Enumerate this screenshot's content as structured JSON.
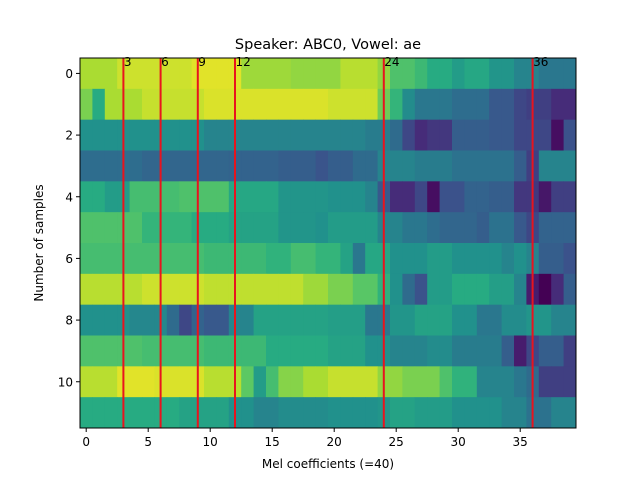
{
  "chart_data": {
    "type": "heatmap",
    "title": "Speaker: ABC0, Vowel: ae",
    "xlabel": "Mel coefficients (=40)",
    "ylabel": "Number of samples",
    "colormap": "viridis",
    "value_range": [
      0,
      1
    ],
    "n_cols": 40,
    "n_rows": 12,
    "xlim": [
      -0.5,
      39.5
    ],
    "ylim": [
      11.5,
      -0.5
    ],
    "x_ticks": [
      0,
      5,
      10,
      15,
      20,
      25,
      30,
      35
    ],
    "y_ticks": [
      0,
      2,
      4,
      6,
      8,
      10
    ],
    "grid": false,
    "row_levels": [
      [
        [
          0,
          0.88
        ],
        [
          3,
          0.93
        ],
        [
          9,
          0.96
        ],
        [
          13,
          0.86
        ],
        [
          17,
          0.84
        ],
        [
          21,
          0.9
        ],
        [
          24,
          0.84
        ],
        [
          25,
          0.72
        ],
        [
          27,
          0.68
        ],
        [
          28,
          0.62
        ],
        [
          30,
          0.55
        ],
        [
          31,
          0.6
        ],
        [
          33,
          0.52
        ],
        [
          35,
          0.45
        ],
        [
          37,
          0.4
        ]
      ],
      [
        [
          0,
          0.8
        ],
        [
          1,
          0.62
        ],
        [
          2,
          0.88
        ],
        [
          5,
          0.92
        ],
        [
          10,
          0.95
        ],
        [
          20,
          0.93
        ],
        [
          24,
          0.78
        ],
        [
          25,
          0.66
        ],
        [
          26,
          0.48
        ],
        [
          27,
          0.4
        ],
        [
          30,
          0.36
        ],
        [
          33,
          0.28
        ],
        [
          35,
          0.22
        ],
        [
          36,
          0.2
        ],
        [
          38,
          0.15
        ]
      ],
      [
        [
          0,
          0.5
        ],
        [
          10,
          0.45
        ],
        [
          23,
          0.42
        ],
        [
          25,
          0.35
        ],
        [
          26,
          0.22
        ],
        [
          27,
          0.15
        ],
        [
          28,
          0.18
        ],
        [
          30,
          0.3
        ],
        [
          33,
          0.28
        ],
        [
          35,
          0.22
        ],
        [
          38,
          0.05
        ],
        [
          39,
          0.25
        ]
      ],
      [
        [
          0,
          0.36
        ],
        [
          5,
          0.33
        ],
        [
          12,
          0.32
        ],
        [
          16,
          0.3
        ],
        [
          19,
          0.26
        ],
        [
          20,
          0.3
        ],
        [
          22,
          0.35
        ],
        [
          24,
          0.45
        ],
        [
          27,
          0.42
        ],
        [
          30,
          0.38
        ],
        [
          35,
          0.3
        ],
        [
          36,
          0.2
        ],
        [
          37,
          0.45
        ]
      ],
      [
        [
          0,
          0.62
        ],
        [
          2,
          0.55
        ],
        [
          4,
          0.7
        ],
        [
          8,
          0.72
        ],
        [
          12,
          0.6
        ],
        [
          16,
          0.52
        ],
        [
          20,
          0.5
        ],
        [
          23,
          0.45
        ],
        [
          24,
          0.28
        ],
        [
          25,
          0.15
        ],
        [
          27,
          0.22
        ],
        [
          28,
          0.05
        ],
        [
          29,
          0.25
        ],
        [
          31,
          0.32
        ],
        [
          33,
          0.3
        ],
        [
          35,
          0.18
        ],
        [
          37,
          0.08
        ],
        [
          38,
          0.2
        ]
      ],
      [
        [
          0,
          0.72
        ],
        [
          5,
          0.66
        ],
        [
          9,
          0.62
        ],
        [
          12,
          0.58
        ],
        [
          16,
          0.52
        ],
        [
          19,
          0.5
        ],
        [
          20,
          0.55
        ],
        [
          24,
          0.45
        ],
        [
          26,
          0.4
        ],
        [
          28,
          0.36
        ],
        [
          29,
          0.33
        ],
        [
          32,
          0.3
        ],
        [
          33,
          0.38
        ],
        [
          35,
          0.28
        ],
        [
          36,
          0.22
        ],
        [
          37,
          0.32
        ]
      ],
      [
        [
          0,
          0.7
        ],
        [
          10,
          0.68
        ],
        [
          15,
          0.65
        ],
        [
          17,
          0.7
        ],
        [
          19,
          0.66
        ],
        [
          21,
          0.58
        ],
        [
          22,
          0.4
        ],
        [
          23,
          0.6
        ],
        [
          25,
          0.5
        ],
        [
          28,
          0.55
        ],
        [
          30,
          0.5
        ],
        [
          34,
          0.45
        ],
        [
          35,
          0.5
        ],
        [
          36,
          0.45
        ],
        [
          37,
          0.3
        ],
        [
          39,
          0.25
        ]
      ],
      [
        [
          0,
          0.9
        ],
        [
          5,
          0.93
        ],
        [
          10,
          0.91
        ],
        [
          18,
          0.86
        ],
        [
          20,
          0.8
        ],
        [
          22,
          0.74
        ],
        [
          24,
          0.65
        ],
        [
          25,
          0.5
        ],
        [
          26,
          0.35
        ],
        [
          27,
          0.25
        ],
        [
          28,
          0.55
        ],
        [
          30,
          0.62
        ],
        [
          33,
          0.56
        ],
        [
          35,
          0.45
        ],
        [
          36,
          0.1
        ],
        [
          37,
          0.0
        ],
        [
          38,
          0.15
        ],
        [
          39,
          0.3
        ]
      ],
      [
        [
          0,
          0.5
        ],
        [
          4,
          0.46
        ],
        [
          7,
          0.35
        ],
        [
          8,
          0.22
        ],
        [
          9,
          0.32
        ],
        [
          10,
          0.28
        ],
        [
          12,
          0.45
        ],
        [
          14,
          0.58
        ],
        [
          20,
          0.56
        ],
        [
          23,
          0.4
        ],
        [
          25,
          0.52
        ],
        [
          27,
          0.58
        ],
        [
          30,
          0.5
        ],
        [
          32,
          0.4
        ],
        [
          34,
          0.48
        ],
        [
          36,
          0.52
        ],
        [
          38,
          0.45
        ]
      ],
      [
        [
          0,
          0.72
        ],
        [
          5,
          0.7
        ],
        [
          10,
          0.68
        ],
        [
          15,
          0.62
        ],
        [
          20,
          0.58
        ],
        [
          23,
          0.5
        ],
        [
          25,
          0.45
        ],
        [
          28,
          0.48
        ],
        [
          30,
          0.42
        ],
        [
          34,
          0.3
        ],
        [
          35,
          0.1
        ],
        [
          36,
          0.22
        ],
        [
          37,
          0.3
        ],
        [
          39,
          0.2
        ]
      ],
      [
        [
          0,
          0.9
        ],
        [
          3,
          0.96
        ],
        [
          6,
          0.95
        ],
        [
          10,
          0.9
        ],
        [
          13,
          0.75
        ],
        [
          14,
          0.55
        ],
        [
          15,
          0.7
        ],
        [
          16,
          0.82
        ],
        [
          18,
          0.88
        ],
        [
          20,
          0.92
        ],
        [
          24,
          0.84
        ],
        [
          26,
          0.8
        ],
        [
          29,
          0.72
        ],
        [
          30,
          0.65
        ],
        [
          32,
          0.45
        ],
        [
          35,
          0.4
        ],
        [
          36,
          0.35
        ],
        [
          37,
          0.2
        ]
      ],
      [
        [
          0,
          0.62
        ],
        [
          8,
          0.58
        ],
        [
          12,
          0.5
        ],
        [
          14,
          0.45
        ],
        [
          16,
          0.48
        ],
        [
          20,
          0.5
        ],
        [
          24,
          0.52
        ],
        [
          25,
          0.58
        ],
        [
          27,
          0.55
        ],
        [
          30,
          0.5
        ],
        [
          34,
          0.45
        ],
        [
          36,
          0.38
        ],
        [
          38,
          0.45
        ]
      ]
    ],
    "vertical_markers": [
      {
        "x": 3,
        "label": "3"
      },
      {
        "x": 6,
        "label": "6"
      },
      {
        "x": 9,
        "label": "9"
      },
      {
        "x": 12,
        "label": "12"
      },
      {
        "x": 24,
        "label": "24"
      },
      {
        "x": 36,
        "label": "36"
      }
    ],
    "marker_color": "#e8141e"
  }
}
